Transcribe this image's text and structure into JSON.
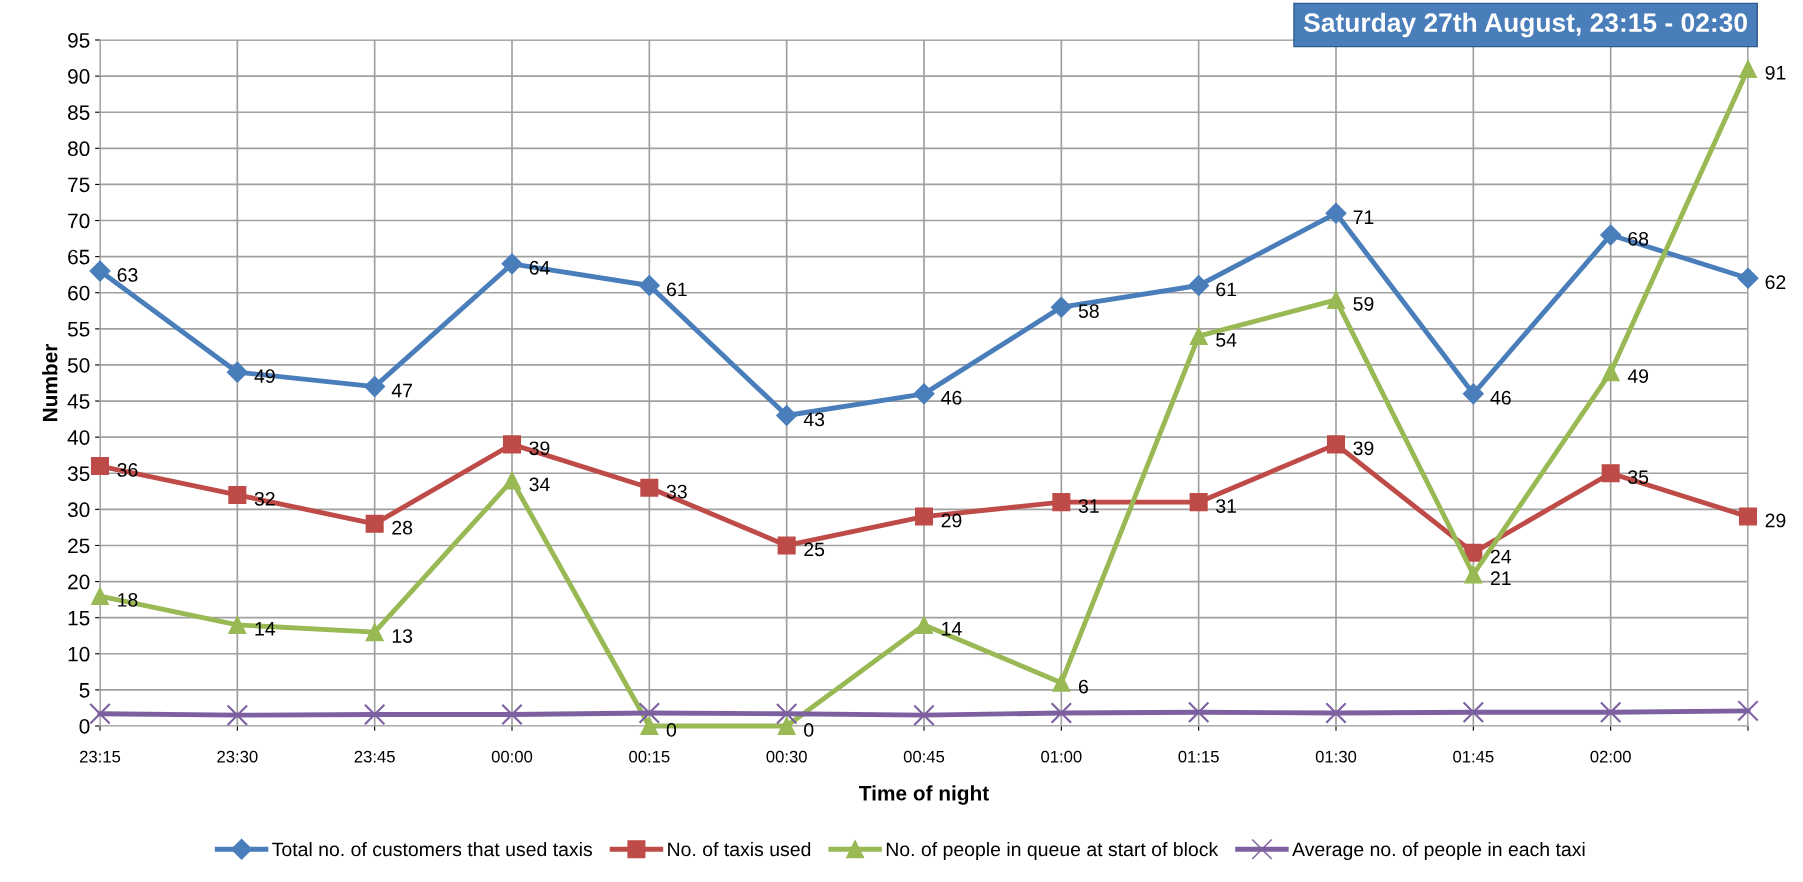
{
  "chart_data": {
    "type": "line",
    "title": "Saturday 27th August, 23:15 - 02:30",
    "xlabel": "Time of night",
    "ylabel": "Number",
    "categories": [
      "23:15",
      "23:30",
      "23:45",
      "00:00",
      "00:15",
      "00:30",
      "00:45",
      "01:00",
      "01:15",
      "01:30",
      "01:45",
      "02:00",
      null
    ],
    "series": [
      {
        "name": "Total no. of customers that used taxis",
        "color": "#4a7ebb",
        "marker": "diamond",
        "values": [
          63,
          49,
          47,
          64,
          61,
          43,
          46,
          58,
          61,
          71,
          46,
          68,
          62
        ],
        "value_labels": [
          "63",
          "49",
          "47",
          "64",
          "61",
          "43",
          "46",
          "58",
          "61",
          "71",
          "46",
          "68",
          "62"
        ]
      },
      {
        "name": "No. of taxis used",
        "color": "#be4b48",
        "marker": "square",
        "values": [
          36,
          32,
          28,
          39,
          33,
          25,
          29,
          31,
          31,
          39,
          24,
          35,
          29
        ],
        "value_labels": [
          "36",
          "32",
          "28",
          "39",
          "33",
          "25",
          "29",
          "31",
          "31",
          "39",
          "24",
          "35",
          "29"
        ]
      },
      {
        "name": "No. of people in queue at start of block",
        "color": "#98b954",
        "marker": "triangle",
        "values": [
          18,
          14,
          13,
          34,
          0,
          0,
          14,
          6,
          54,
          59,
          21,
          49,
          91
        ],
        "value_labels": [
          "18",
          "14",
          "13",
          "34",
          "0",
          "0",
          "14",
          "6",
          "54",
          "59",
          "21",
          "49",
          "91"
        ]
      },
      {
        "name": "Average no. of people in each taxi",
        "color": "#7d60a0",
        "marker": "cross",
        "values": [
          1.7,
          1.5,
          1.6,
          1.6,
          1.8,
          1.7,
          1.5,
          1.8,
          1.9,
          1.8,
          1.9,
          1.9,
          2.1
        ]
      }
    ],
    "ylim": [
      0,
      95
    ],
    "yticks": [
      0,
      5,
      10,
      15,
      20,
      25,
      30,
      35,
      40,
      45,
      50,
      55,
      60,
      65,
      70,
      75,
      80,
      85,
      90,
      95
    ],
    "grid": true,
    "legend": "bottom",
    "line_style": "solid"
  }
}
